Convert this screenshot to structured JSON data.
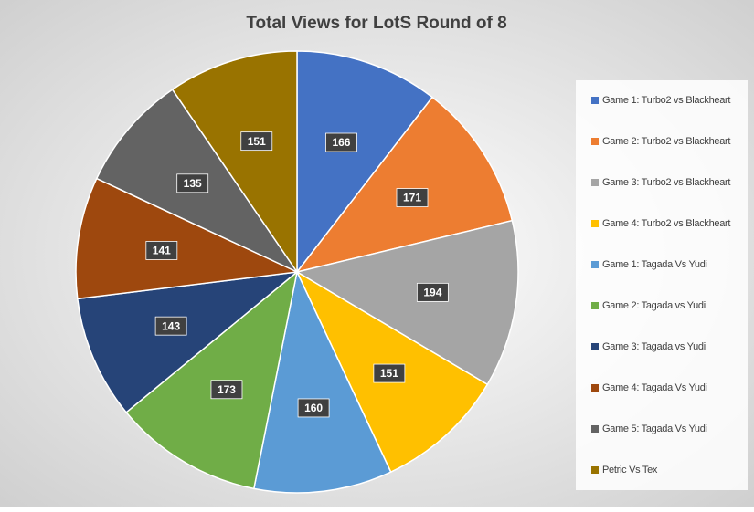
{
  "chart_data": {
    "type": "pie",
    "title": "Total Views for LotS Round of 8",
    "categories": [
      "Game 1: Turbo2 vs Blackheart",
      "Game 2: Turbo2 vs Blackheart",
      "Game 3: Turbo2 vs Blackheart",
      "Game 4: Turbo2 vs Blackheart",
      "Game 1: Tagada Vs Yudi",
      "Game 2: Tagada vs Yudi",
      "Game 3: Tagada vs Yudi",
      "Game 4: Tagada Vs Yudi",
      "Game 5: Tagada Vs Yudi",
      "Petric Vs Tex"
    ],
    "values": [
      166,
      171,
      194,
      151,
      160,
      173,
      143,
      141,
      135,
      151
    ],
    "colors": [
      "#4472c4",
      "#ed7d31",
      "#a5a5a5",
      "#ffc000",
      "#5b9bd5",
      "#70ad47",
      "#264478",
      "#9e480e",
      "#636363",
      "#997300"
    ],
    "legend": "right"
  }
}
